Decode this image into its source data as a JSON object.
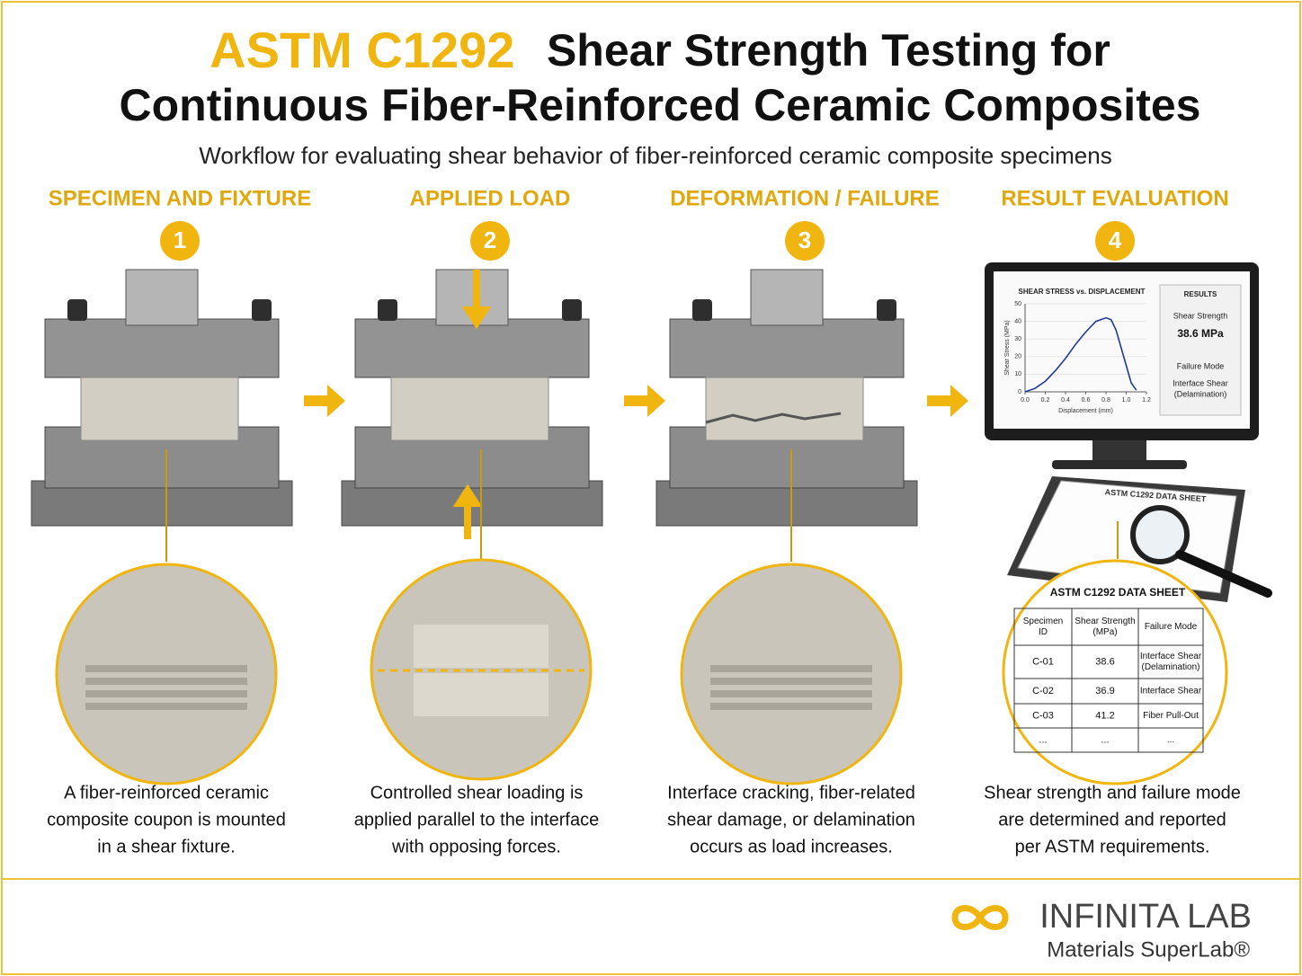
{
  "header": {
    "title_highlight": "ASTM C1292",
    "title_rest": "Shear Strength Testing for",
    "title_line2": "Continuous Fiber-Reinforced Ceramic Composites",
    "subtitle": "Workflow for evaluating shear behavior of fiber-reinforced ceramic composite specimens"
  },
  "steps": [
    {
      "heading": "SPECIMEN AND FIXTURE",
      "number": "1",
      "caption": [
        "A fiber-reinforced ceramic",
        "composite coupon is mounted",
        "in a shear fixture."
      ]
    },
    {
      "heading": "APPLIED LOAD",
      "number": "2",
      "caption": [
        "Controlled shear loading is",
        "applied parallel to the interface",
        "with opposing forces."
      ]
    },
    {
      "heading": "DEFORMATION / FAILURE",
      "number": "3",
      "caption": [
        "Interface cracking, fiber-related",
        "shear damage, or delamination",
        "occurs as load increases."
      ]
    },
    {
      "heading": "RESULT EVALUATION",
      "number": "4",
      "caption": [
        "Shear strength and failure mode",
        "are determined and reported",
        "per ASTM requirements."
      ]
    }
  ],
  "chart_data": {
    "type": "line",
    "title": "SHEAR STRESS vs. DISPLACEMENT",
    "x_label": "Displacement (mm)",
    "y_label": "Shear Stress (MPa)",
    "x": [
      0,
      0.1,
      0.2,
      0.3,
      0.4,
      0.5,
      0.6,
      0.7,
      0.8,
      0.85,
      0.9,
      1.0,
      1.05,
      1.1
    ],
    "series": [
      {
        "name": "Shear stress",
        "color": "#1f3a93",
        "values": [
          0,
          2,
          6,
          12,
          19,
          27,
          34,
          40,
          42,
          41,
          35,
          15,
          5,
          1
        ]
      }
    ],
    "xlim": [
      0,
      1.2
    ],
    "ylim": [
      0,
      50
    ],
    "xticks": [
      {
        "value": 0,
        "label": "0.0"
      },
      0.2,
      0.4,
      0.6,
      0.8,
      {
        "value": 1,
        "label": "1.0"
      },
      1.2
    ],
    "yticks": [
      0,
      10,
      20,
      30,
      40,
      50
    ]
  },
  "results_panel": {
    "title": "RESULTS",
    "strength_label": "Shear Strength",
    "strength_value": "38.6 MPa",
    "mode_label": "Failure Mode",
    "mode_value": [
      "Interface Shear",
      "(Delamination)"
    ]
  },
  "clipboard_title": "ASTM C1292 DATA SHEET",
  "table": {
    "title": "ASTM C1292 DATA SHEET",
    "headers": [
      [
        "Specimen",
        "ID"
      ],
      [
        "Shear Strength",
        "(MPa)"
      ],
      [
        "Failure Mode"
      ]
    ],
    "rows": [
      [
        "C-01",
        "38.6",
        [
          "Interface Shear",
          "(Delamination)"
        ]
      ],
      [
        "C-02",
        "36.9",
        [
          "Interface Shear"
        ]
      ],
      [
        "C-03",
        "41.2",
        [
          "Fiber Pull-Out"
        ]
      ],
      [
        "...",
        "...",
        [
          "..."
        ]
      ]
    ]
  },
  "footer": {
    "logo": "INFINITA LAB",
    "tagline": "Materials SuperLab®"
  }
}
